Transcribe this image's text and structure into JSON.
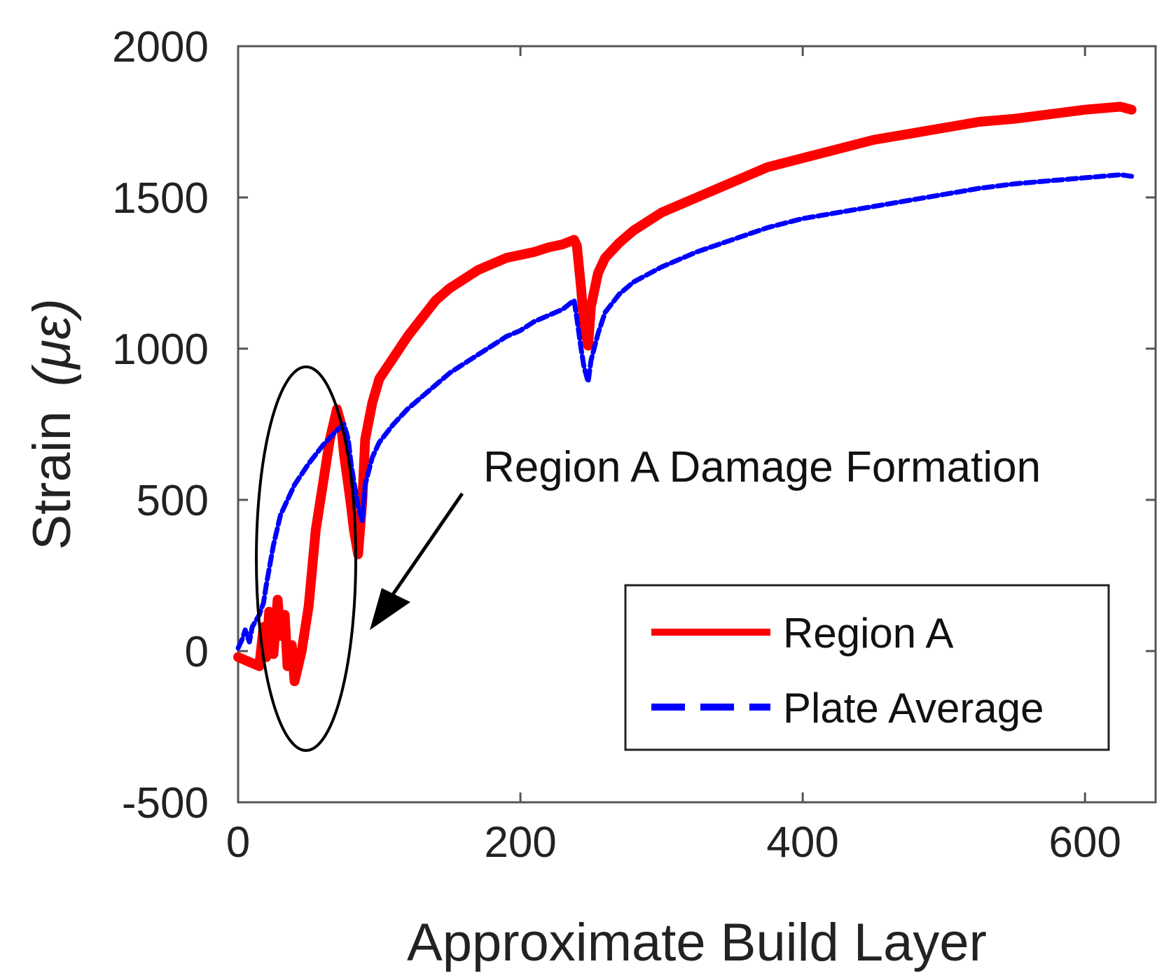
{
  "chart_data": {
    "type": "line",
    "title": "",
    "xlabel": "Approximate Build Layer",
    "ylabel": "Strain (με)",
    "ylabel_main": "Strain",
    "ylabel_unit": "(με)",
    "xlim": [
      0,
      650
    ],
    "ylim": [
      -500,
      2000
    ],
    "xticks": [
      0,
      200,
      400,
      600
    ],
    "yticks": [
      -500,
      0,
      500,
      1000,
      1500,
      2000
    ],
    "grid": false,
    "legend_position": "lower-right",
    "series": [
      {
        "name": "Region A",
        "color": "#ff0000",
        "style": "solid",
        "x": [
          0,
          5,
          10,
          15,
          18,
          20,
          22,
          25,
          28,
          30,
          33,
          35,
          38,
          40,
          45,
          50,
          55,
          60,
          65,
          70,
          73,
          75,
          78,
          80,
          82,
          85,
          88,
          90,
          95,
          100,
          110,
          120,
          130,
          140,
          150,
          160,
          170,
          180,
          190,
          200,
          210,
          220,
          230,
          238,
          240,
          243,
          245,
          248,
          250,
          255,
          260,
          270,
          280,
          300,
          325,
          350,
          375,
          400,
          425,
          450,
          475,
          500,
          525,
          550,
          575,
          600,
          625,
          633
        ],
        "y": [
          -20,
          -30,
          -40,
          -50,
          80,
          -20,
          130,
          -10,
          170,
          50,
          120,
          -50,
          20,
          -100,
          0,
          150,
          400,
          550,
          700,
          800,
          750,
          650,
          550,
          480,
          400,
          320,
          500,
          700,
          820,
          900,
          970,
          1040,
          1100,
          1160,
          1200,
          1230,
          1260,
          1280,
          1300,
          1310,
          1320,
          1335,
          1345,
          1360,
          1340,
          1200,
          1080,
          1010,
          1140,
          1250,
          1300,
          1350,
          1390,
          1450,
          1500,
          1550,
          1600,
          1630,
          1660,
          1690,
          1710,
          1730,
          1750,
          1760,
          1775,
          1790,
          1800,
          1790
        ]
      },
      {
        "name": "Plate Average",
        "color": "#0000ff",
        "style": "dashed",
        "x": [
          0,
          3,
          5,
          8,
          10,
          15,
          18,
          20,
          25,
          30,
          40,
          50,
          60,
          70,
          75,
          78,
          80,
          82,
          85,
          88,
          90,
          95,
          100,
          110,
          120,
          130,
          140,
          150,
          160,
          170,
          180,
          190,
          200,
          210,
          220,
          230,
          238,
          240,
          243,
          245,
          248,
          250,
          255,
          260,
          270,
          280,
          300,
          325,
          350,
          375,
          400,
          425,
          450,
          475,
          500,
          525,
          550,
          575,
          600,
          625,
          633
        ],
        "y": [
          10,
          40,
          70,
          30,
          80,
          120,
          160,
          220,
          350,
          450,
          550,
          620,
          680,
          730,
          750,
          700,
          620,
          560,
          480,
          430,
          550,
          640,
          690,
          750,
          800,
          840,
          880,
          920,
          950,
          980,
          1010,
          1040,
          1060,
          1090,
          1110,
          1130,
          1160,
          1100,
          1000,
          940,
          890,
          960,
          1050,
          1120,
          1180,
          1220,
          1270,
          1320,
          1360,
          1400,
          1430,
          1450,
          1470,
          1490,
          1510,
          1530,
          1545,
          1555,
          1565,
          1575,
          1570
        ]
      }
    ],
    "annotations": [
      {
        "text": "Region A Damage Formation",
        "type": "arrow-to-ellipse"
      }
    ]
  }
}
